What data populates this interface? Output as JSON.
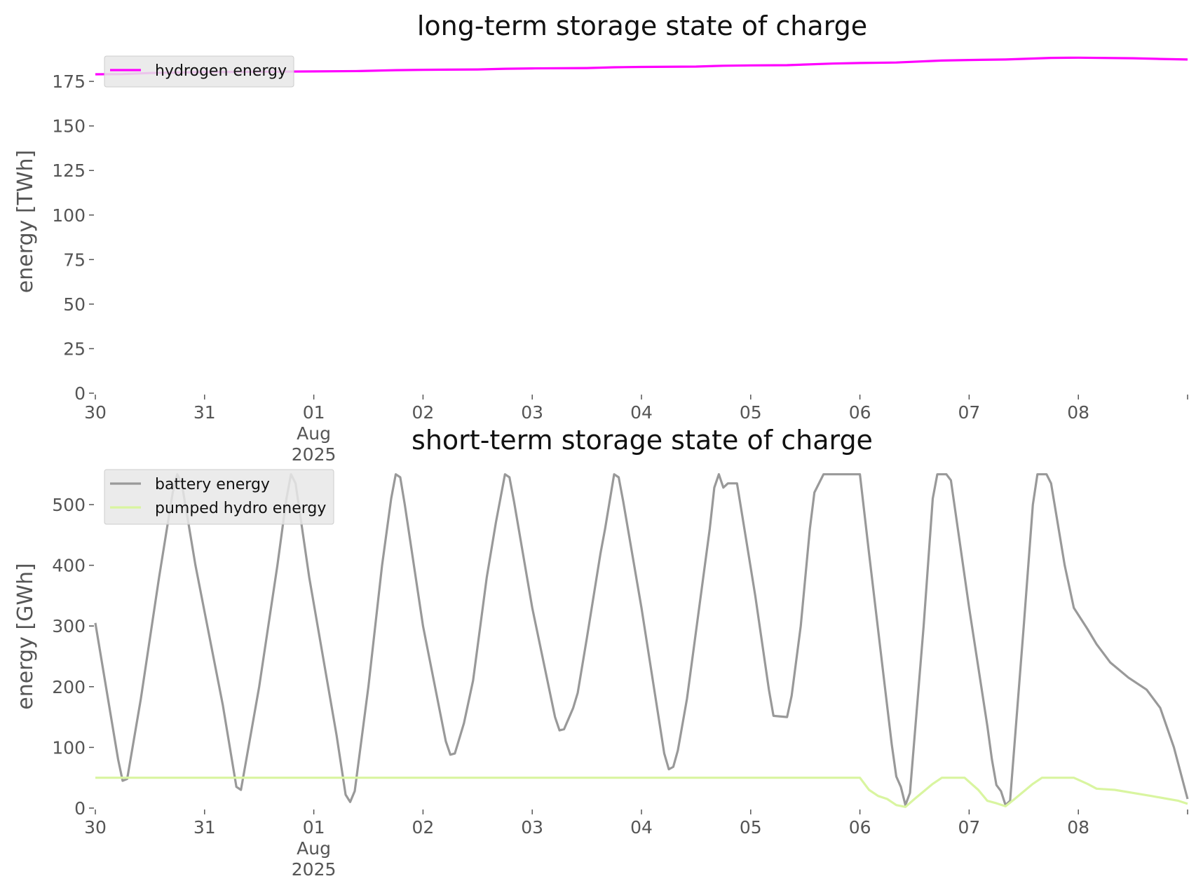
{
  "chart_data": [
    {
      "type": "line",
      "title": "long-term storage state of charge",
      "xlabel": "",
      "ylabel": "energy [TWh]",
      "ylim": [
        0,
        190
      ],
      "yticks": [
        0,
        25,
        50,
        75,
        100,
        125,
        150,
        175
      ],
      "xlim": [
        "2025-07-30",
        "2025-08-09"
      ],
      "xticks": [
        {
          "date": "2025-07-30",
          "label": "30"
        },
        {
          "date": "2025-07-31",
          "label": "31"
        },
        {
          "date": "2025-08-01",
          "label": "01",
          "sub": [
            "Aug",
            "2025"
          ]
        },
        {
          "date": "2025-08-02",
          "label": "02"
        },
        {
          "date": "2025-08-03",
          "label": "03"
        },
        {
          "date": "2025-08-04",
          "label": "04"
        },
        {
          "date": "2025-08-05",
          "label": "05"
        },
        {
          "date": "2025-08-06",
          "label": "06"
        },
        {
          "date": "2025-08-07",
          "label": "07"
        },
        {
          "date": "2025-08-08",
          "label": "08"
        },
        {
          "date": "2025-08-09",
          "label": ""
        }
      ],
      "grid": false,
      "legend_position": "top-left",
      "series": [
        {
          "name": "hydrogen energy",
          "color": "#ff00ff",
          "points": [
            [
              "2025-07-30T00:00",
              179.0
            ],
            [
              "2025-07-30T06:00",
              179.1
            ],
            [
              "2025-07-30T12:00",
              179.7
            ],
            [
              "2025-07-30T18:00",
              180.0
            ],
            [
              "2025-07-31T00:00",
              180.2
            ],
            [
              "2025-07-31T12:00",
              180.4
            ],
            [
              "2025-08-01T00:00",
              180.6
            ],
            [
              "2025-08-01T10:00",
              180.8
            ],
            [
              "2025-08-01T18:00",
              181.3
            ],
            [
              "2025-08-02T00:00",
              181.5
            ],
            [
              "2025-08-02T12:00",
              181.7
            ],
            [
              "2025-08-02T18:00",
              182.1
            ],
            [
              "2025-08-03T00:00",
              182.3
            ],
            [
              "2025-08-03T12:00",
              182.5
            ],
            [
              "2025-08-03T18:00",
              182.9
            ],
            [
              "2025-08-04T00:00",
              183.1
            ],
            [
              "2025-08-04T12:00",
              183.3
            ],
            [
              "2025-08-04T18:00",
              183.8
            ],
            [
              "2025-08-05T00:00",
              184.0
            ],
            [
              "2025-08-05T08:00",
              184.1
            ],
            [
              "2025-08-05T18:00",
              185.0
            ],
            [
              "2025-08-06T00:00",
              185.3
            ],
            [
              "2025-08-06T08:00",
              185.6
            ],
            [
              "2025-08-06T18:00",
              186.7
            ],
            [
              "2025-08-07T00:00",
              187.0
            ],
            [
              "2025-08-07T08:00",
              187.3
            ],
            [
              "2025-08-07T18:00",
              188.2
            ],
            [
              "2025-08-08T00:00",
              188.3
            ],
            [
              "2025-08-08T12:00",
              188.0
            ],
            [
              "2025-08-08T18:00",
              187.6
            ],
            [
              "2025-08-09T00:00",
              187.3
            ]
          ]
        }
      ]
    },
    {
      "type": "line",
      "title": "short-term storage state of charge",
      "xlabel": "",
      "ylabel": "energy [GWh]",
      "ylim": [
        0,
        560
      ],
      "yticks": [
        0,
        100,
        200,
        300,
        400,
        500
      ],
      "xlim": [
        "2025-07-30",
        "2025-08-09"
      ],
      "xticks": [
        {
          "date": "2025-07-30",
          "label": "30"
        },
        {
          "date": "2025-07-31",
          "label": "31"
        },
        {
          "date": "2025-08-01",
          "label": "01",
          "sub": [
            "Aug",
            "2025"
          ]
        },
        {
          "date": "2025-08-02",
          "label": "02"
        },
        {
          "date": "2025-08-03",
          "label": "03"
        },
        {
          "date": "2025-08-04",
          "label": "04"
        },
        {
          "date": "2025-08-05",
          "label": "05"
        },
        {
          "date": "2025-08-06",
          "label": "06"
        },
        {
          "date": "2025-08-07",
          "label": "07"
        },
        {
          "date": "2025-08-08",
          "label": "08"
        },
        {
          "date": "2025-08-09",
          "label": ""
        }
      ],
      "grid": false,
      "legend_position": "top-left",
      "series": [
        {
          "name": "battery energy",
          "color": "#999999",
          "points": [
            [
              "2025-07-30T00:00",
              305
            ],
            [
              "2025-07-30T03:00",
              170
            ],
            [
              "2025-07-30T05:00",
              80
            ],
            [
              "2025-07-30T06:00",
              45
            ],
            [
              "2025-07-30T07:00",
              48
            ],
            [
              "2025-07-30T10:00",
              180
            ],
            [
              "2025-07-30T14:00",
              380
            ],
            [
              "2025-07-30T17:00",
              520
            ],
            [
              "2025-07-30T18:00",
              550
            ],
            [
              "2025-07-30T19:00",
              535
            ],
            [
              "2025-07-30T22:00",
              400
            ],
            [
              "2025-07-31T04:00",
              170
            ],
            [
              "2025-07-31T07:00",
              35
            ],
            [
              "2025-07-31T08:00",
              30
            ],
            [
              "2025-07-31T12:00",
              200
            ],
            [
              "2025-07-31T16:00",
              400
            ],
            [
              "2025-07-31T18:00",
              510
            ],
            [
              "2025-07-31T19:00",
              550
            ],
            [
              "2025-07-31T20:00",
              535
            ],
            [
              "2025-07-31T23:00",
              380
            ],
            [
              "2025-08-01T05:00",
              120
            ],
            [
              "2025-08-01T07:00",
              22
            ],
            [
              "2025-08-01T08:00",
              10
            ],
            [
              "2025-08-01T09:00",
              28
            ],
            [
              "2025-08-01T12:00",
              200
            ],
            [
              "2025-08-01T15:00",
              400
            ],
            [
              "2025-08-01T17:00",
              510
            ],
            [
              "2025-08-01T18:00",
              550
            ],
            [
              "2025-08-01T19:00",
              545
            ],
            [
              "2025-08-01T20:00",
              500
            ],
            [
              "2025-08-02T00:00",
              300
            ],
            [
              "2025-08-02T05:00",
              110
            ],
            [
              "2025-08-02T06:00",
              88
            ],
            [
              "2025-08-02T07:00",
              90
            ],
            [
              "2025-08-02T09:00",
              140
            ],
            [
              "2025-08-02T11:00",
              210
            ],
            [
              "2025-08-02T14:00",
              380
            ],
            [
              "2025-08-02T16:00",
              470
            ],
            [
              "2025-08-02T17:00",
              510
            ],
            [
              "2025-08-02T18:00",
              550
            ],
            [
              "2025-08-02T19:00",
              545
            ],
            [
              "2025-08-02T20:00",
              505
            ],
            [
              "2025-08-03T00:00",
              330
            ],
            [
              "2025-08-03T05:00",
              150
            ],
            [
              "2025-08-03T06:00",
              128
            ],
            [
              "2025-08-03T07:00",
              130
            ],
            [
              "2025-08-03T09:00",
              165
            ],
            [
              "2025-08-03T10:00",
              190
            ],
            [
              "2025-08-03T12:00",
              280
            ],
            [
              "2025-08-03T15:00",
              420
            ],
            [
              "2025-08-03T16:00",
              460
            ],
            [
              "2025-08-03T18:00",
              550
            ],
            [
              "2025-08-03T19:00",
              545
            ],
            [
              "2025-08-03T20:00",
              505
            ],
            [
              "2025-08-04T00:00",
              330
            ],
            [
              "2025-08-04T05:00",
              90
            ],
            [
              "2025-08-04T06:00",
              64
            ],
            [
              "2025-08-04T07:00",
              68
            ],
            [
              "2025-08-04T08:00",
              95
            ],
            [
              "2025-08-04T10:00",
              180
            ],
            [
              "2025-08-04T15:00",
              460
            ],
            [
              "2025-08-04T16:00",
              528
            ],
            [
              "2025-08-04T17:00",
              550
            ],
            [
              "2025-08-04T18:00",
              528
            ],
            [
              "2025-08-04T19:00",
              535
            ],
            [
              "2025-08-04T21:00",
              535
            ],
            [
              "2025-08-05T01:00",
              350
            ],
            [
              "2025-08-05T04:00",
              195
            ],
            [
              "2025-08-05T05:00",
              152
            ],
            [
              "2025-08-05T08:00",
              150
            ],
            [
              "2025-08-05T09:00",
              185
            ],
            [
              "2025-08-05T11:00",
              300
            ],
            [
              "2025-08-05T13:00",
              460
            ],
            [
              "2025-08-05T14:00",
              520
            ],
            [
              "2025-08-05T16:00",
              550
            ],
            [
              "2025-08-06T00:00",
              550
            ],
            [
              "2025-08-06T02:00",
              420
            ],
            [
              "2025-08-06T05:00",
              230
            ],
            [
              "2025-08-06T07:00",
              105
            ],
            [
              "2025-08-06T08:00",
              52
            ],
            [
              "2025-08-06T09:00",
              35
            ],
            [
              "2025-08-06T10:00",
              5
            ],
            [
              "2025-08-06T11:00",
              25
            ],
            [
              "2025-08-06T14:00",
              300
            ],
            [
              "2025-08-06T16:00",
              510
            ],
            [
              "2025-08-06T17:00",
              550
            ],
            [
              "2025-08-06T19:00",
              550
            ],
            [
              "2025-08-06T20:00",
              540
            ],
            [
              "2025-08-07T00:00",
              330
            ],
            [
              "2025-08-07T04:00",
              135
            ],
            [
              "2025-08-07T05:00",
              80
            ],
            [
              "2025-08-07T06:00",
              38
            ],
            [
              "2025-08-07T07:00",
              28
            ],
            [
              "2025-08-07T08:00",
              5
            ],
            [
              "2025-08-07T09:00",
              12
            ],
            [
              "2025-08-07T12:00",
              300
            ],
            [
              "2025-08-07T14:00",
              500
            ],
            [
              "2025-08-07T15:00",
              550
            ],
            [
              "2025-08-07T17:00",
              550
            ],
            [
              "2025-08-07T18:00",
              535
            ],
            [
              "2025-08-07T21:00",
              400
            ],
            [
              "2025-08-07T23:00",
              330
            ],
            [
              "2025-08-08T02:00",
              295
            ],
            [
              "2025-08-08T04:00",
              270
            ],
            [
              "2025-08-08T07:00",
              240
            ],
            [
              "2025-08-08T11:00",
              215
            ],
            [
              "2025-08-08T15:00",
              195
            ],
            [
              "2025-08-08T18:00",
              165
            ],
            [
              "2025-08-08T21:00",
              100
            ],
            [
              "2025-08-09T00:00",
              15
            ]
          ]
        },
        {
          "name": "pumped hydro energy",
          "color": "#d9f5a0",
          "points": [
            [
              "2025-07-30T00:00",
              50
            ],
            [
              "2025-08-06T00:00",
              50
            ],
            [
              "2025-08-06T02:00",
              30
            ],
            [
              "2025-08-06T04:00",
              20
            ],
            [
              "2025-08-06T06:00",
              15
            ],
            [
              "2025-08-06T08:00",
              5
            ],
            [
              "2025-08-06T10:00",
              2
            ],
            [
              "2025-08-06T12:00",
              15
            ],
            [
              "2025-08-06T16:00",
              40
            ],
            [
              "2025-08-06T18:00",
              50
            ],
            [
              "2025-08-06T23:00",
              50
            ],
            [
              "2025-08-07T02:00",
              30
            ],
            [
              "2025-08-07T04:00",
              12
            ],
            [
              "2025-08-07T06:00",
              8
            ],
            [
              "2025-08-07T08:00",
              3
            ],
            [
              "2025-08-07T10:00",
              15
            ],
            [
              "2025-08-07T14:00",
              40
            ],
            [
              "2025-08-07T16:00",
              50
            ],
            [
              "2025-08-07T23:00",
              50
            ],
            [
              "2025-08-08T02:00",
              40
            ],
            [
              "2025-08-08T04:00",
              32
            ],
            [
              "2025-08-08T08:00",
              30
            ],
            [
              "2025-08-08T16:00",
              20
            ],
            [
              "2025-08-08T22:00",
              12
            ],
            [
              "2025-08-09T00:00",
              7
            ]
          ]
        }
      ]
    }
  ]
}
